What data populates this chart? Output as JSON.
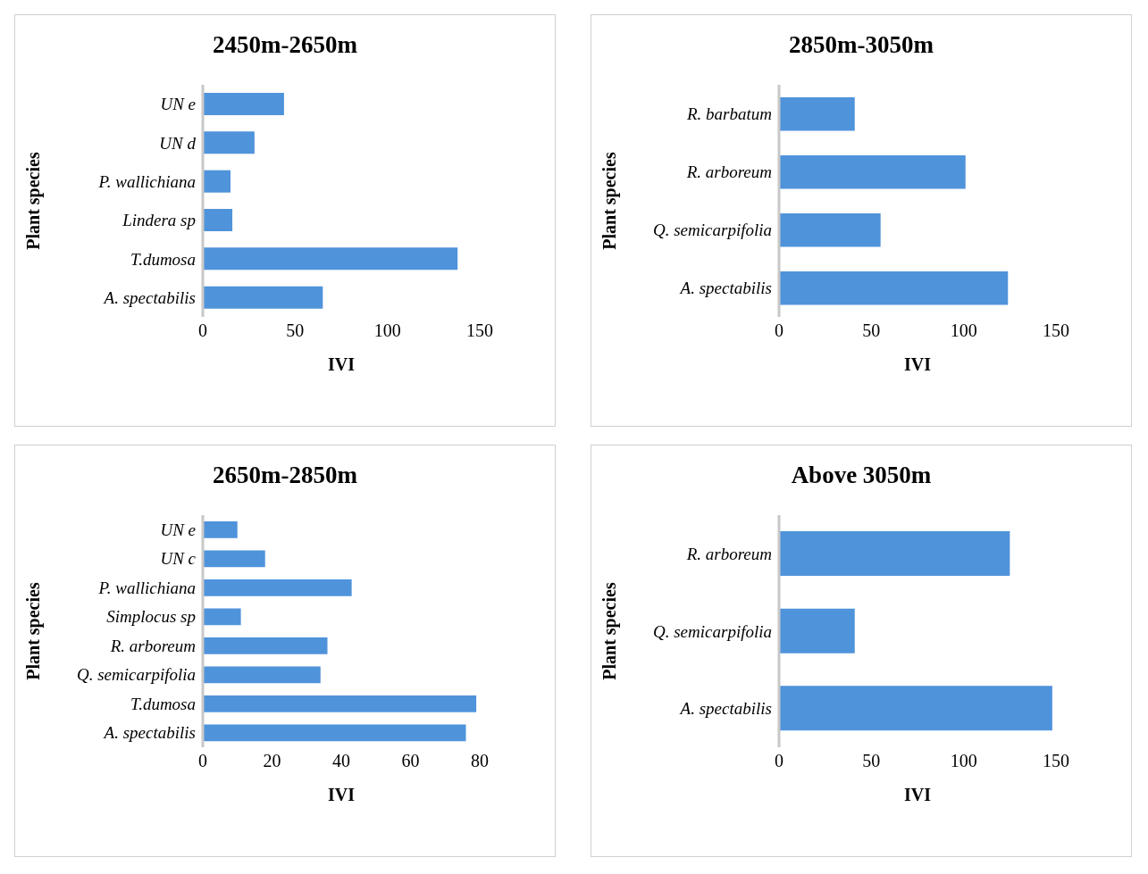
{
  "chart_data": [
    {
      "type": "bar",
      "orientation": "horizontal",
      "title": "2450m-2650m",
      "xlabel": "IVI",
      "ylabel": "Plant species",
      "categories": [
        "UN e",
        "UN d",
        "P. wallichiana",
        "Lindera sp",
        "T.dumosa",
        "A. spectabilis"
      ],
      "values": [
        44,
        28,
        15,
        16,
        138,
        65
      ],
      "color": "#4f93db",
      "xlim": [
        0,
        150
      ],
      "xticks": [
        0,
        50,
        100,
        150
      ],
      "grid": false,
      "legend": false
    },
    {
      "type": "bar",
      "orientation": "horizontal",
      "title": "2850m-3050m",
      "xlabel": "IVI",
      "ylabel": "Plant species",
      "categories": [
        "R. barbatum",
        "R. arboreum",
        "Q. semicarpifolia",
        "A. spectabilis"
      ],
      "values": [
        41,
        101,
        55,
        124
      ],
      "color": "#4f93db",
      "xlim": [
        0,
        150
      ],
      "xticks": [
        0,
        50,
        100,
        150
      ],
      "grid": false,
      "legend": false
    },
    {
      "type": "bar",
      "orientation": "horizontal",
      "title": "2650m-2850m",
      "xlabel": "IVI",
      "ylabel": "Plant species",
      "categories": [
        "UN e",
        "UN c",
        "P. wallichiana",
        "Simplocus sp",
        "R. arboreum",
        "Q. semicarpifolia",
        "T.dumosa",
        "A. spectabilis"
      ],
      "values": [
        10,
        18,
        43,
        11,
        36,
        34,
        79,
        76
      ],
      "color": "#4f93db",
      "xlim": [
        0,
        80
      ],
      "xticks": [
        0,
        20,
        40,
        60,
        80
      ],
      "grid": false,
      "legend": false
    },
    {
      "type": "bar",
      "orientation": "horizontal",
      "title": "Above 3050m",
      "xlabel": "IVI",
      "ylabel": "Plant species",
      "categories": [
        "R. arboreum",
        "Q. semicarpifolia",
        "A. spectabilis"
      ],
      "values": [
        125,
        41,
        148
      ],
      "color": "#4f93db",
      "xlim": [
        0,
        150
      ],
      "xticks": [
        0,
        50,
        100,
        150
      ],
      "grid": false,
      "legend": false
    }
  ]
}
